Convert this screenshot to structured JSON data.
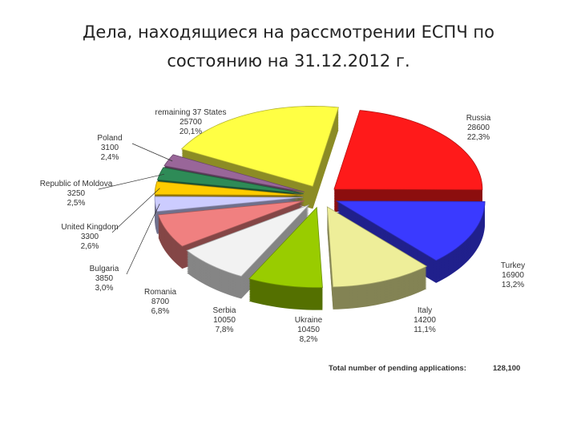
{
  "title": "Дела, находящиеся на рассмотрении ЕСПЧ по состоянию на 31.12.2012 г.",
  "chart_data": {
    "type": "pie3d",
    "categories": [
      "Russia",
      "Turkey",
      "Italy",
      "Ukraine",
      "Serbia",
      "Romania",
      "Bulgaria",
      "United Kingdom",
      "Republic of Moldova",
      "Poland",
      "remaining 37 States"
    ],
    "values": [
      28600,
      16900,
      14200,
      10450,
      10050,
      8700,
      3850,
      3300,
      3250,
      3100,
      25700
    ],
    "percent_labels": [
      "22,3%",
      "13,2%",
      "11,1%",
      "8,2%",
      "7,8%",
      "6,8%",
      "3,0%",
      "2,6%",
      "2,5%",
      "2,4%",
      "20,1%"
    ],
    "colors": [
      "#ff1a1a",
      "#3a3aff",
      "#eeee99",
      "#99cc00",
      "#f2f2f2",
      "#f08080",
      "#ccccff",
      "#ffcc00",
      "#2e8b57",
      "#996699",
      "#ffff44"
    ],
    "total_text": "Total number of pending applications:",
    "total": "128,100"
  }
}
